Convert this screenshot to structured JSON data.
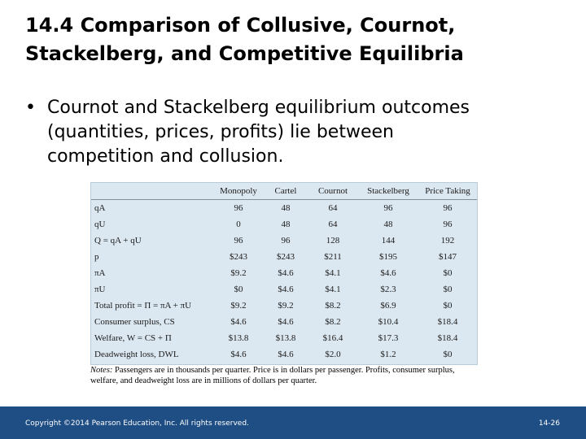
{
  "slide": {
    "title_line1": "14.4  Comparison of Collusive, Cournot,",
    "title_line2": "Stackelberg, and Competitive Equilibria",
    "bullet_symbol": "•",
    "bullet_line1": "Cournot and Stackelberg equilibrium outcomes",
    "bullet_line2": "(quantities, prices, profits) lie between",
    "bullet_line3": "competition and collusion."
  },
  "table": {
    "columns": [
      "Monopoly",
      "Cartel",
      "Cournot",
      "Stackelberg",
      "Price Taking"
    ],
    "rows": [
      {
        "label": "qA",
        "values": [
          "96",
          "48",
          "64",
          "96",
          "96"
        ]
      },
      {
        "label": "qU",
        "values": [
          "0",
          "48",
          "64",
          "48",
          "96"
        ]
      },
      {
        "label": "Q = qA + qU",
        "values": [
          "96",
          "96",
          "128",
          "144",
          "192"
        ]
      },
      {
        "label": "p",
        "values": [
          "$243",
          "$243",
          "$211",
          "$195",
          "$147"
        ]
      },
      {
        "label": "πA",
        "values": [
          "$9.2",
          "$4.6",
          "$4.1",
          "$4.6",
          "$0"
        ]
      },
      {
        "label": "πU",
        "values": [
          "$0",
          "$4.6",
          "$4.1",
          "$2.3",
          "$0"
        ]
      },
      {
        "label": "Total profit = Π = πA + πU",
        "values": [
          "$9.2",
          "$9.2",
          "$8.2",
          "$6.9",
          "$0"
        ]
      },
      {
        "label": "Consumer surplus, CS",
        "values": [
          "$4.6",
          "$4.6",
          "$8.2",
          "$10.4",
          "$18.4"
        ]
      },
      {
        "label": "Welfare, W = CS + Π",
        "values": [
          "$13.8",
          "$13.8",
          "$16.4",
          "$17.3",
          "$18.4"
        ]
      },
      {
        "label": "Deadweight loss, DWL",
        "values": [
          "$4.6",
          "$4.6",
          "$2.0",
          "$1.2",
          "$0"
        ]
      }
    ],
    "notes_prefix": "Notes:",
    "notes_text": "Passengers are in thousands per quarter. Price is in dollars per passenger. Profits, consumer surplus, welfare, and deadweight loss are in millions of dollars per quarter."
  },
  "footer": {
    "copyright": "Copyright ©2014 Pearson Education, Inc. All rights reserved.",
    "page_number": "14-26",
    "bar_color": "#1f4e84"
  }
}
